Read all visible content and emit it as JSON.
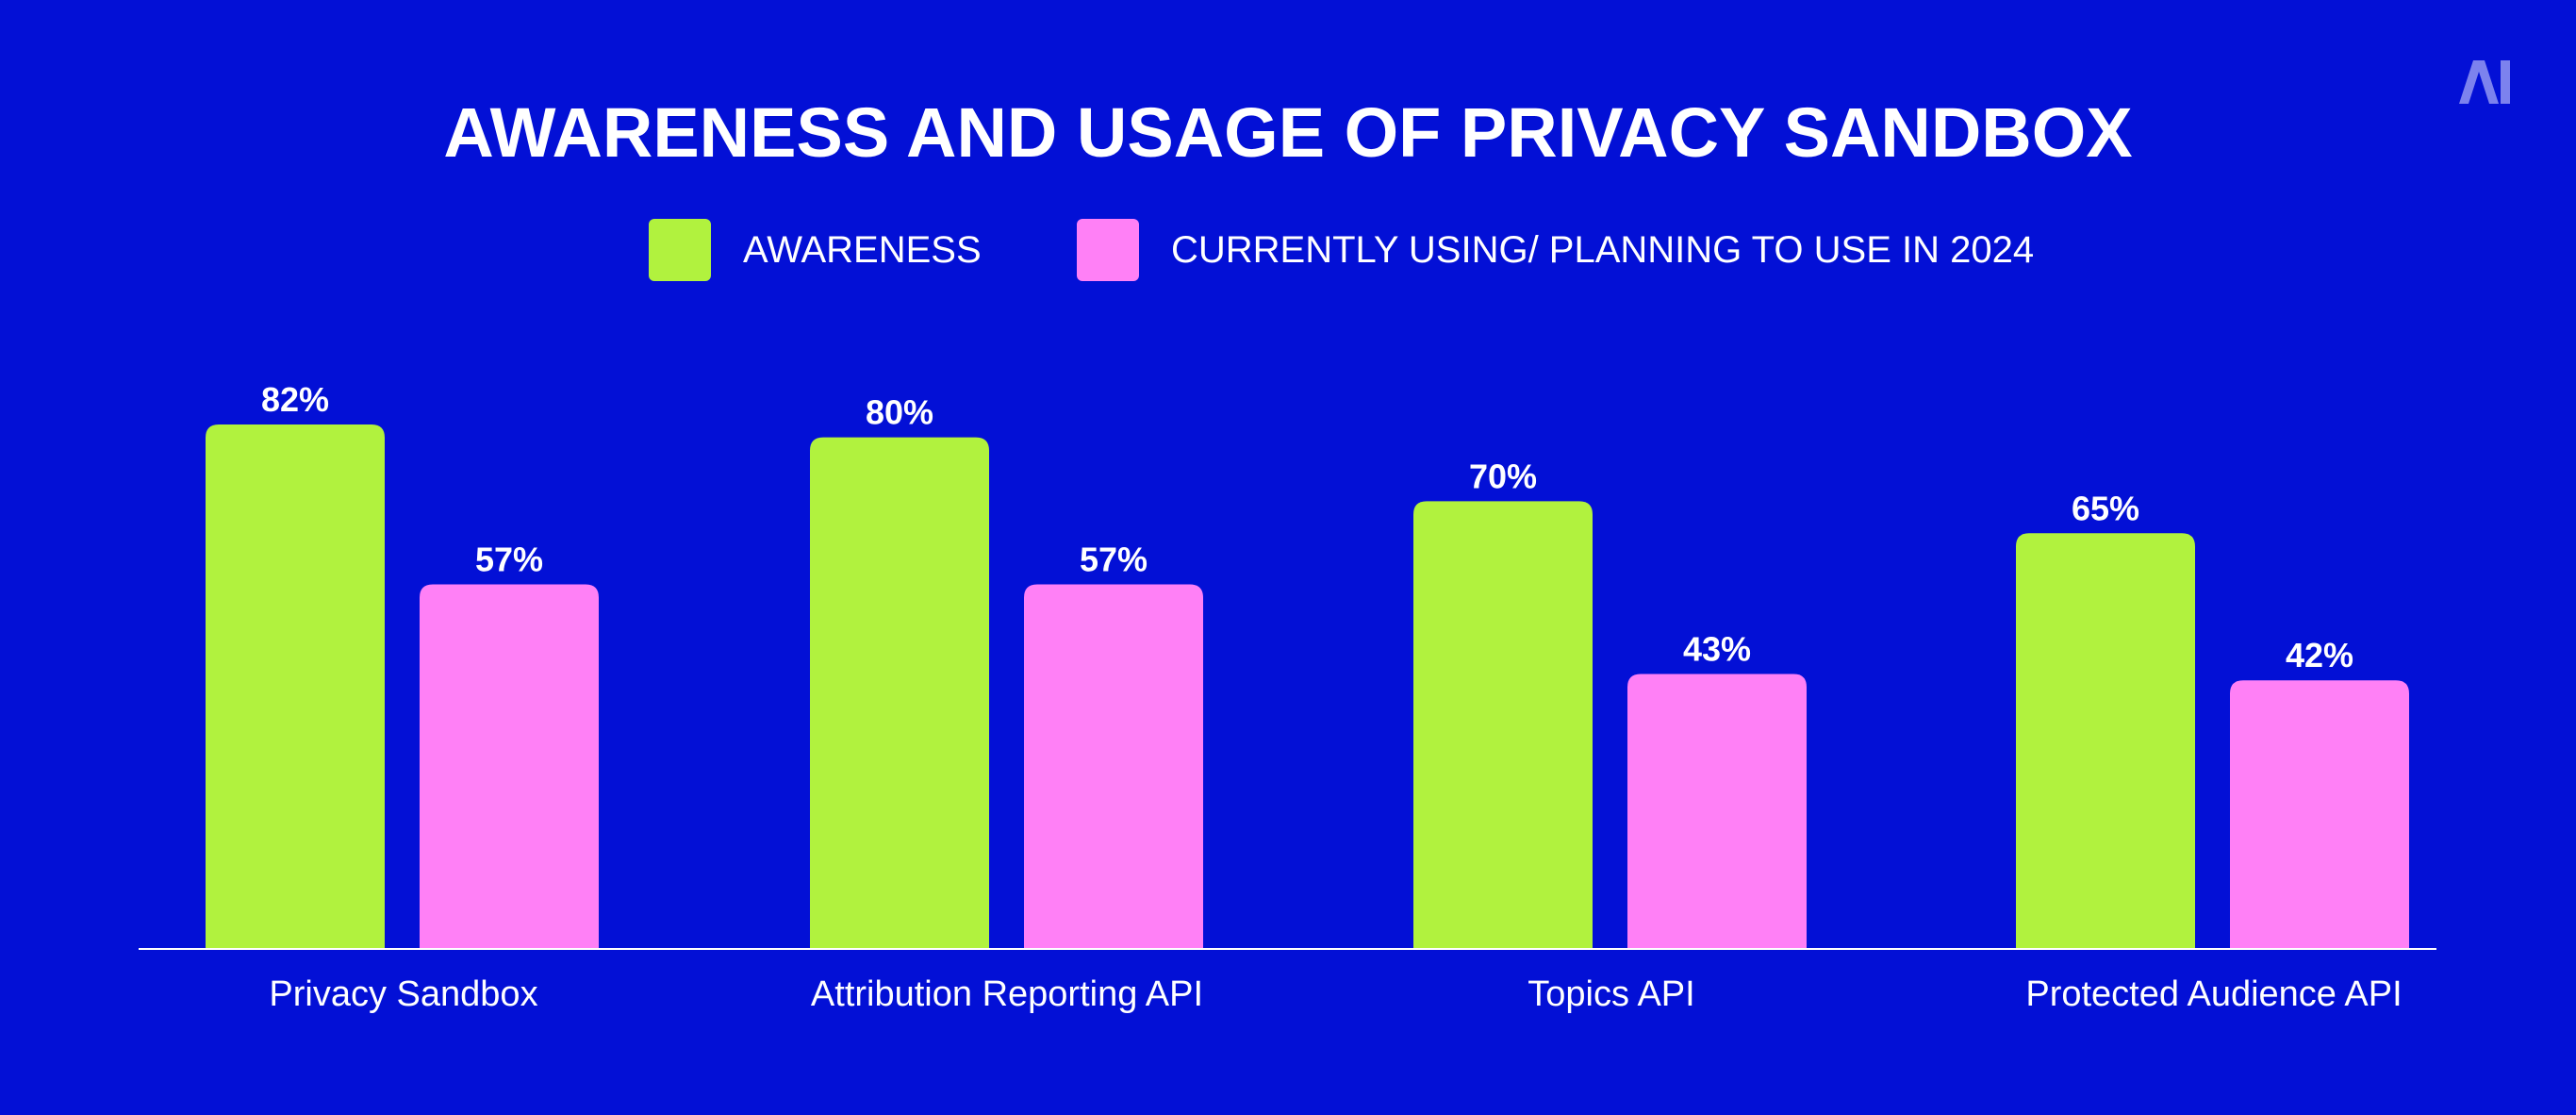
{
  "logo_text": "AI",
  "colors": {
    "background": "#0310d6",
    "awareness": "#b1f23e",
    "usage": "#ff80f6",
    "text": "#ffffff",
    "axis": "#ffffff",
    "logo": "#7c82ee"
  },
  "chart_data": {
    "type": "bar",
    "title": "AWARENESS AND USAGE OF PRIVACY SANDBOX",
    "categories": [
      "Privacy Sandbox",
      "Attribution Reporting API",
      "Topics API",
      "Protected Audience API"
    ],
    "series": [
      {
        "name": "AWARENESS",
        "values": [
          82,
          80,
          70,
          65
        ],
        "labels": [
          "82%",
          "80%",
          "70%",
          "65%"
        ]
      },
      {
        "name": "CURRENTLY USING/ PLANNING TO USE IN 2024",
        "values": [
          57,
          57,
          43,
          42
        ],
        "labels": [
          "57%",
          "57%",
          "43%",
          "42%"
        ]
      }
    ],
    "ylim": [
      0,
      100
    ],
    "grid": false,
    "legend_position": "top-center"
  }
}
